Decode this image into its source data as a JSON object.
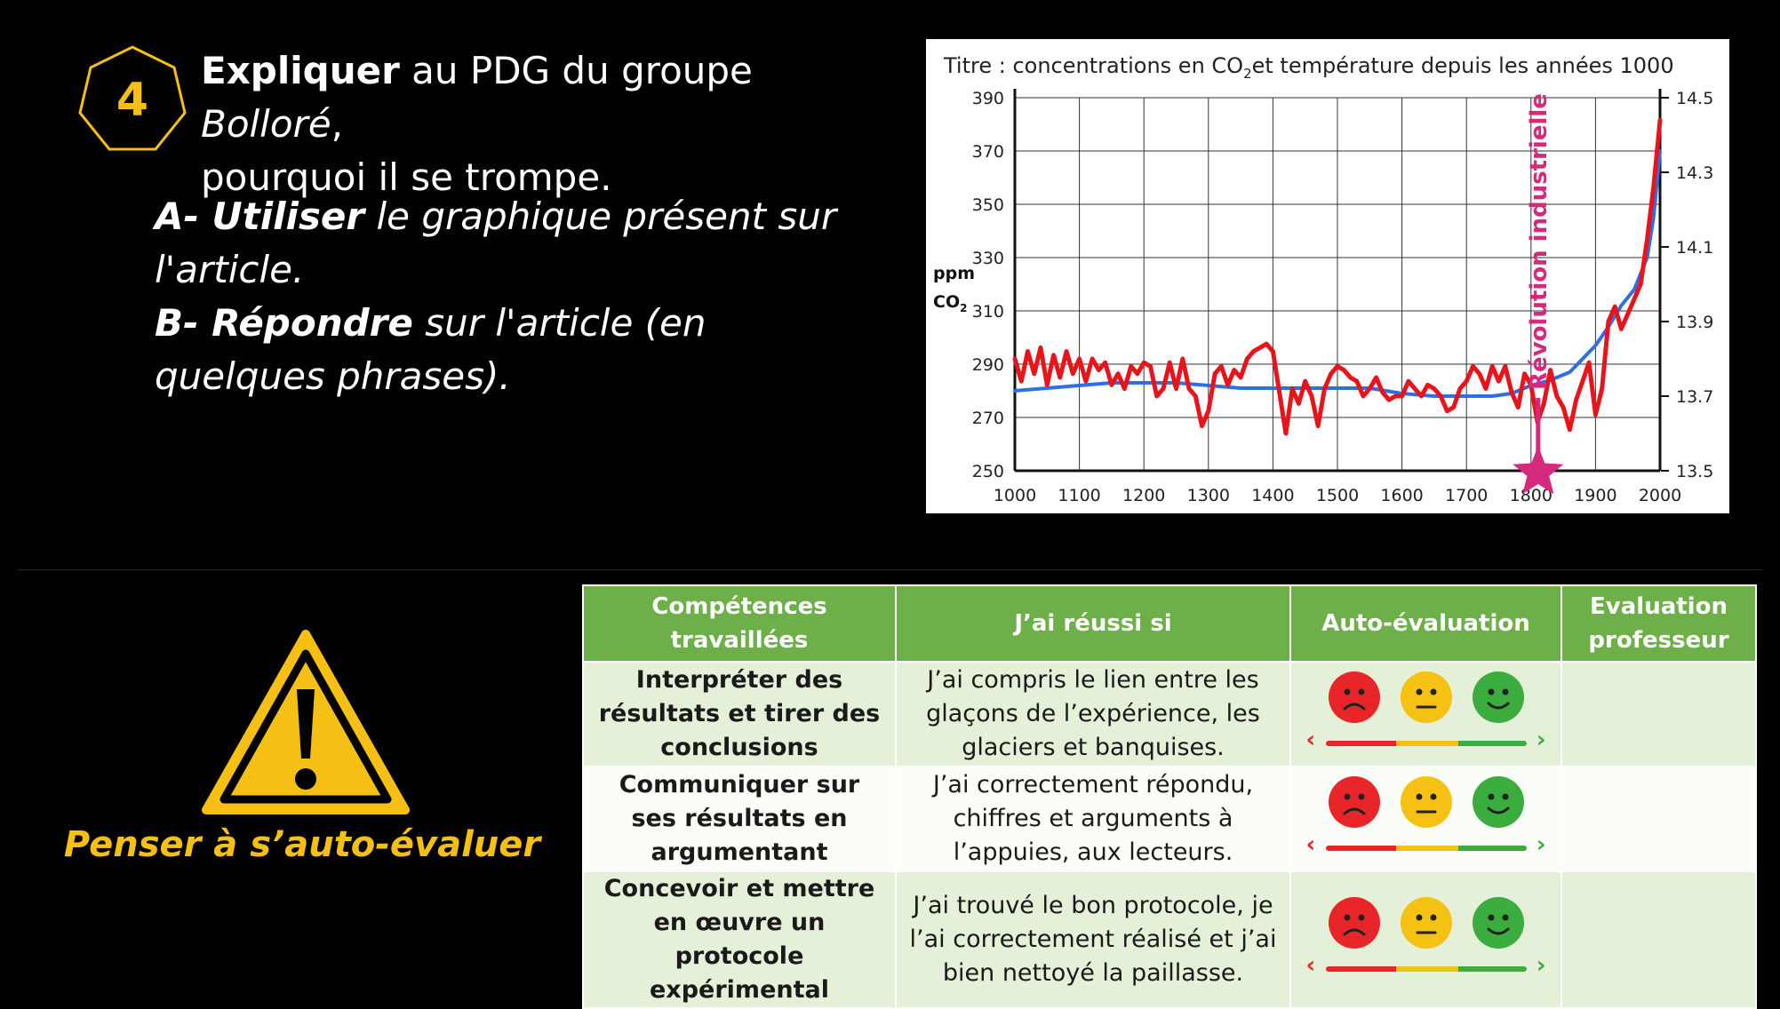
{
  "question": {
    "number": "4",
    "heading_bold": "Expliquer",
    "heading_text1": " au PDG du groupe ",
    "heading_italic": "Bolloré",
    "heading_text2": ",",
    "heading_line2": "pourquoi il se trompe.",
    "step_a_bold": "A- Utiliser",
    "step_a_text": " le graphique présent sur l'article.",
    "step_b_bold": "B- Répondre",
    "step_b_text": " sur l'article (en quelques phrases)."
  },
  "warning": {
    "icon": "warning-triangle-icon",
    "text": "Penser à s’auto-évaluer",
    "color": "#f5c013"
  },
  "chart_data": {
    "type": "line",
    "title_prefix": "Titre : concentrations en CO",
    "title_sub": "2",
    "title_suffix": "et température depuis les années 1000",
    "ylabel_left": "ppm",
    "ylabel_left2": "CO",
    "ylabel_left2_sub": "2",
    "x_ticks": [
      "1000",
      "1100",
      "1200",
      "1300",
      "1400",
      "1500",
      "1600",
      "1700",
      "1800",
      "1900",
      "2000"
    ],
    "y_left_ticks": [
      "390",
      "370",
      "350",
      "330",
      "310",
      "290",
      "270",
      "250"
    ],
    "y_right_ticks": [
      "14.5",
      "14.3",
      "14.1",
      "13.9",
      "13.7",
      "13.5"
    ],
    "xlim": [
      1000,
      2000
    ],
    "ylim_left": [
      250,
      390
    ],
    "ylim_right": [
      13.5,
      14.5
    ],
    "grid": true,
    "annotation": "Révolution industrielle",
    "annotation_x": 1800,
    "series": [
      {
        "axis": "left",
        "color": "#2e6fe6",
        "x": [
          1000,
          1050,
          1100,
          1150,
          1200,
          1250,
          1300,
          1350,
          1400,
          1450,
          1500,
          1550,
          1600,
          1650,
          1700,
          1740,
          1770,
          1800,
          1830,
          1860,
          1880,
          1900,
          1920,
          1940,
          1960,
          1980,
          1990,
          2000
        ],
        "y": [
          280,
          281,
          282,
          283,
          283,
          283,
          282,
          281,
          281,
          281,
          281,
          281,
          279,
          278,
          278,
          278,
          279,
          282,
          284,
          287,
          292,
          297,
          304,
          312,
          318,
          330,
          345,
          370
        ]
      },
      {
        "axis": "right",
        "color": "#e8141c",
        "x": [
          1000,
          1010,
          1020,
          1030,
          1040,
          1050,
          1060,
          1070,
          1080,
          1090,
          1100,
          1110,
          1120,
          1130,
          1140,
          1150,
          1160,
          1170,
          1180,
          1190,
          1200,
          1210,
          1220,
          1230,
          1240,
          1250,
          1260,
          1270,
          1280,
          1290,
          1300,
          1310,
          1320,
          1330,
          1340,
          1350,
          1360,
          1370,
          1380,
          1390,
          1400,
          1410,
          1420,
          1430,
          1440,
          1450,
          1460,
          1470,
          1480,
          1490,
          1500,
          1510,
          1520,
          1530,
          1540,
          1550,
          1560,
          1570,
          1580,
          1590,
          1600,
          1610,
          1620,
          1630,
          1640,
          1650,
          1660,
          1670,
          1680,
          1690,
          1700,
          1710,
          1720,
          1730,
          1740,
          1750,
          1760,
          1770,
          1780,
          1790,
          1800,
          1810,
          1820,
          1830,
          1840,
          1850,
          1860,
          1870,
          1880,
          1890,
          1900,
          1910,
          1920,
          1930,
          1940,
          1950,
          1960,
          1970,
          1980,
          1990,
          2000
        ],
        "y": [
          13.8,
          13.74,
          13.82,
          13.76,
          13.83,
          13.73,
          13.81,
          13.75,
          13.82,
          13.76,
          13.8,
          13.74,
          13.8,
          13.77,
          13.79,
          13.73,
          13.76,
          13.72,
          13.78,
          13.76,
          13.79,
          13.78,
          13.7,
          13.72,
          13.79,
          13.72,
          13.8,
          13.72,
          13.7,
          13.62,
          13.66,
          13.76,
          13.78,
          13.73,
          13.77,
          13.75,
          13.8,
          13.82,
          13.83,
          13.84,
          13.82,
          13.71,
          13.6,
          13.72,
          13.68,
          13.74,
          13.7,
          13.62,
          13.72,
          13.76,
          13.78,
          13.77,
          13.75,
          13.74,
          13.7,
          13.72,
          13.75,
          13.71,
          13.69,
          13.7,
          13.7,
          13.74,
          13.72,
          13.7,
          13.73,
          13.72,
          13.7,
          13.66,
          13.67,
          13.72,
          13.74,
          13.78,
          13.76,
          13.72,
          13.78,
          13.74,
          13.78,
          13.71,
          13.67,
          13.76,
          13.73,
          13.63,
          13.68,
          13.77,
          13.7,
          13.67,
          13.61,
          13.69,
          13.74,
          13.79,
          13.65,
          13.72,
          13.9,
          13.94,
          13.88,
          13.92,
          13.96,
          14.0,
          14.12,
          14.26,
          14.44
        ]
      }
    ]
  },
  "table": {
    "headers": {
      "competences": "Compétences travaillées",
      "reussi": "J’ai réussi si",
      "auto_eval": "Auto-évaluation",
      "eval_prof": "Evaluation professeur"
    },
    "rows": [
      {
        "competence": "Interpréter des résultats et tirer des conclusions",
        "critere": "J’ai compris le lien entre les glaçons de l’expérience, les glaciers et banquises."
      },
      {
        "competence": "Communiquer sur ses résultats en argumentant",
        "critere": "J’ai correctement répondu, chiffres et arguments à l’appuies, aux lecteurs."
      },
      {
        "competence": "Concevoir et mettre en œuvre un protocole expérimental",
        "critere": "J’ai trouvé le bon protocole, je l’ai correctement réalisé et j’ai bien nettoyé la paillasse."
      }
    ],
    "faces": [
      "sad-face-icon",
      "neutral-face-icon",
      "happy-face-icon"
    ],
    "colors": {
      "header": "#6db049",
      "cell": "#e4f0d8",
      "red": "#e8262a",
      "yellow": "#f5c213",
      "green": "#3bad3f"
    }
  }
}
